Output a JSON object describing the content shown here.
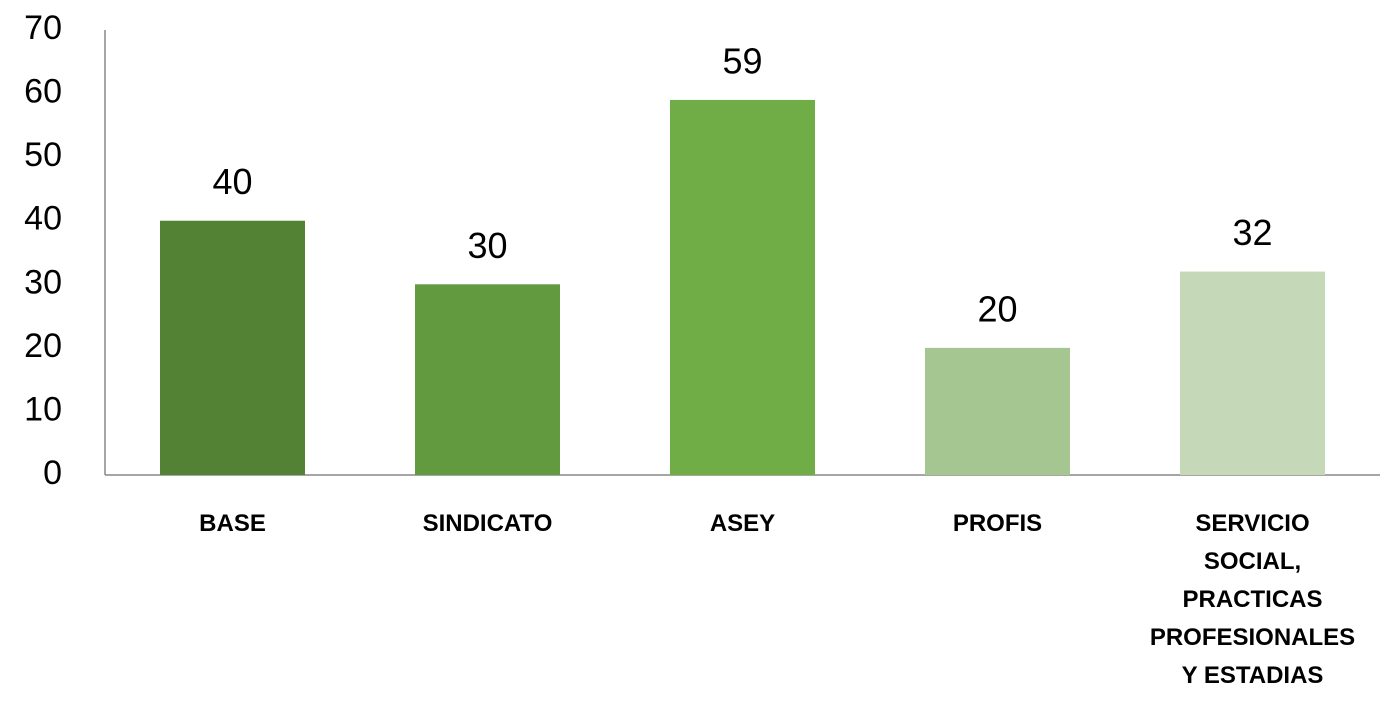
{
  "chart_data": {
    "type": "bar",
    "categories": [
      "BASE",
      "SINDICATO",
      "ASEY",
      "PROFIS",
      "SERVICIO SOCIAL, PRACTICAS PROFESIONALES Y ESTADIAS"
    ],
    "values": [
      40,
      30,
      59,
      20,
      32
    ],
    "colors": [
      "#548235",
      "#629b3f",
      "#70ad47",
      "#a5c690",
      "#c5d9b8"
    ],
    "ylim": [
      0,
      70
    ],
    "yticks": [
      0,
      10,
      20,
      30,
      40,
      50,
      60,
      70
    ],
    "grid": false
  }
}
